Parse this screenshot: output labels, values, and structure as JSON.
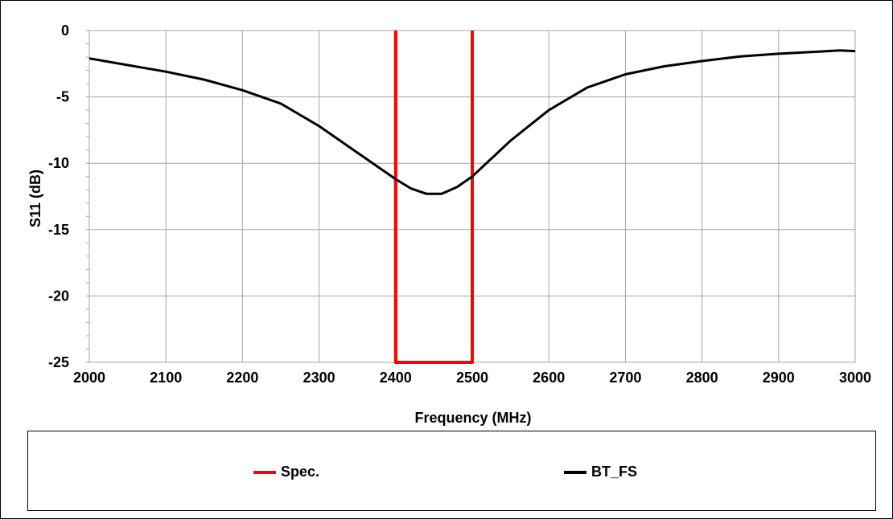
{
  "chart_data": {
    "type": "line",
    "title": "",
    "xlabel": "Frequency (MHz)",
    "ylabel": "S11 (dB)",
    "xlim": [
      2000,
      3000
    ],
    "ylim": [
      -25,
      0
    ],
    "x_ticks": [
      "2000",
      "2100",
      "2200",
      "2300",
      "2400",
      "2500",
      "2600",
      "2700",
      "2800",
      "2900",
      "3000"
    ],
    "y_ticks": [
      "0",
      "-5",
      "-10",
      "-15",
      "-20",
      "-25"
    ],
    "grid": true,
    "legend_position": "bottom",
    "series": [
      {
        "name": "Spec.",
        "color": "#ff0000",
        "x": [
          2400,
          2400,
          2500,
          2500
        ],
        "y": [
          0,
          -25,
          -25,
          0
        ]
      },
      {
        "name": "BT_FS",
        "color": "#000000",
        "x": [
          2000,
          2050,
          2100,
          2150,
          2200,
          2250,
          2300,
          2350,
          2400,
          2420,
          2440,
          2460,
          2480,
          2500,
          2550,
          2600,
          2650,
          2700,
          2750,
          2800,
          2850,
          2900,
          2950,
          2980,
          3000
        ],
        "y": [
          -2.1,
          -2.6,
          -3.1,
          -3.7,
          -4.5,
          -5.5,
          -7.2,
          -9.2,
          -11.2,
          -11.9,
          -12.3,
          -12.3,
          -11.8,
          -11.0,
          -8.3,
          -6.0,
          -4.3,
          -3.3,
          -2.7,
          -2.3,
          -1.95,
          -1.75,
          -1.6,
          -1.5,
          -1.55
        ]
      }
    ]
  }
}
